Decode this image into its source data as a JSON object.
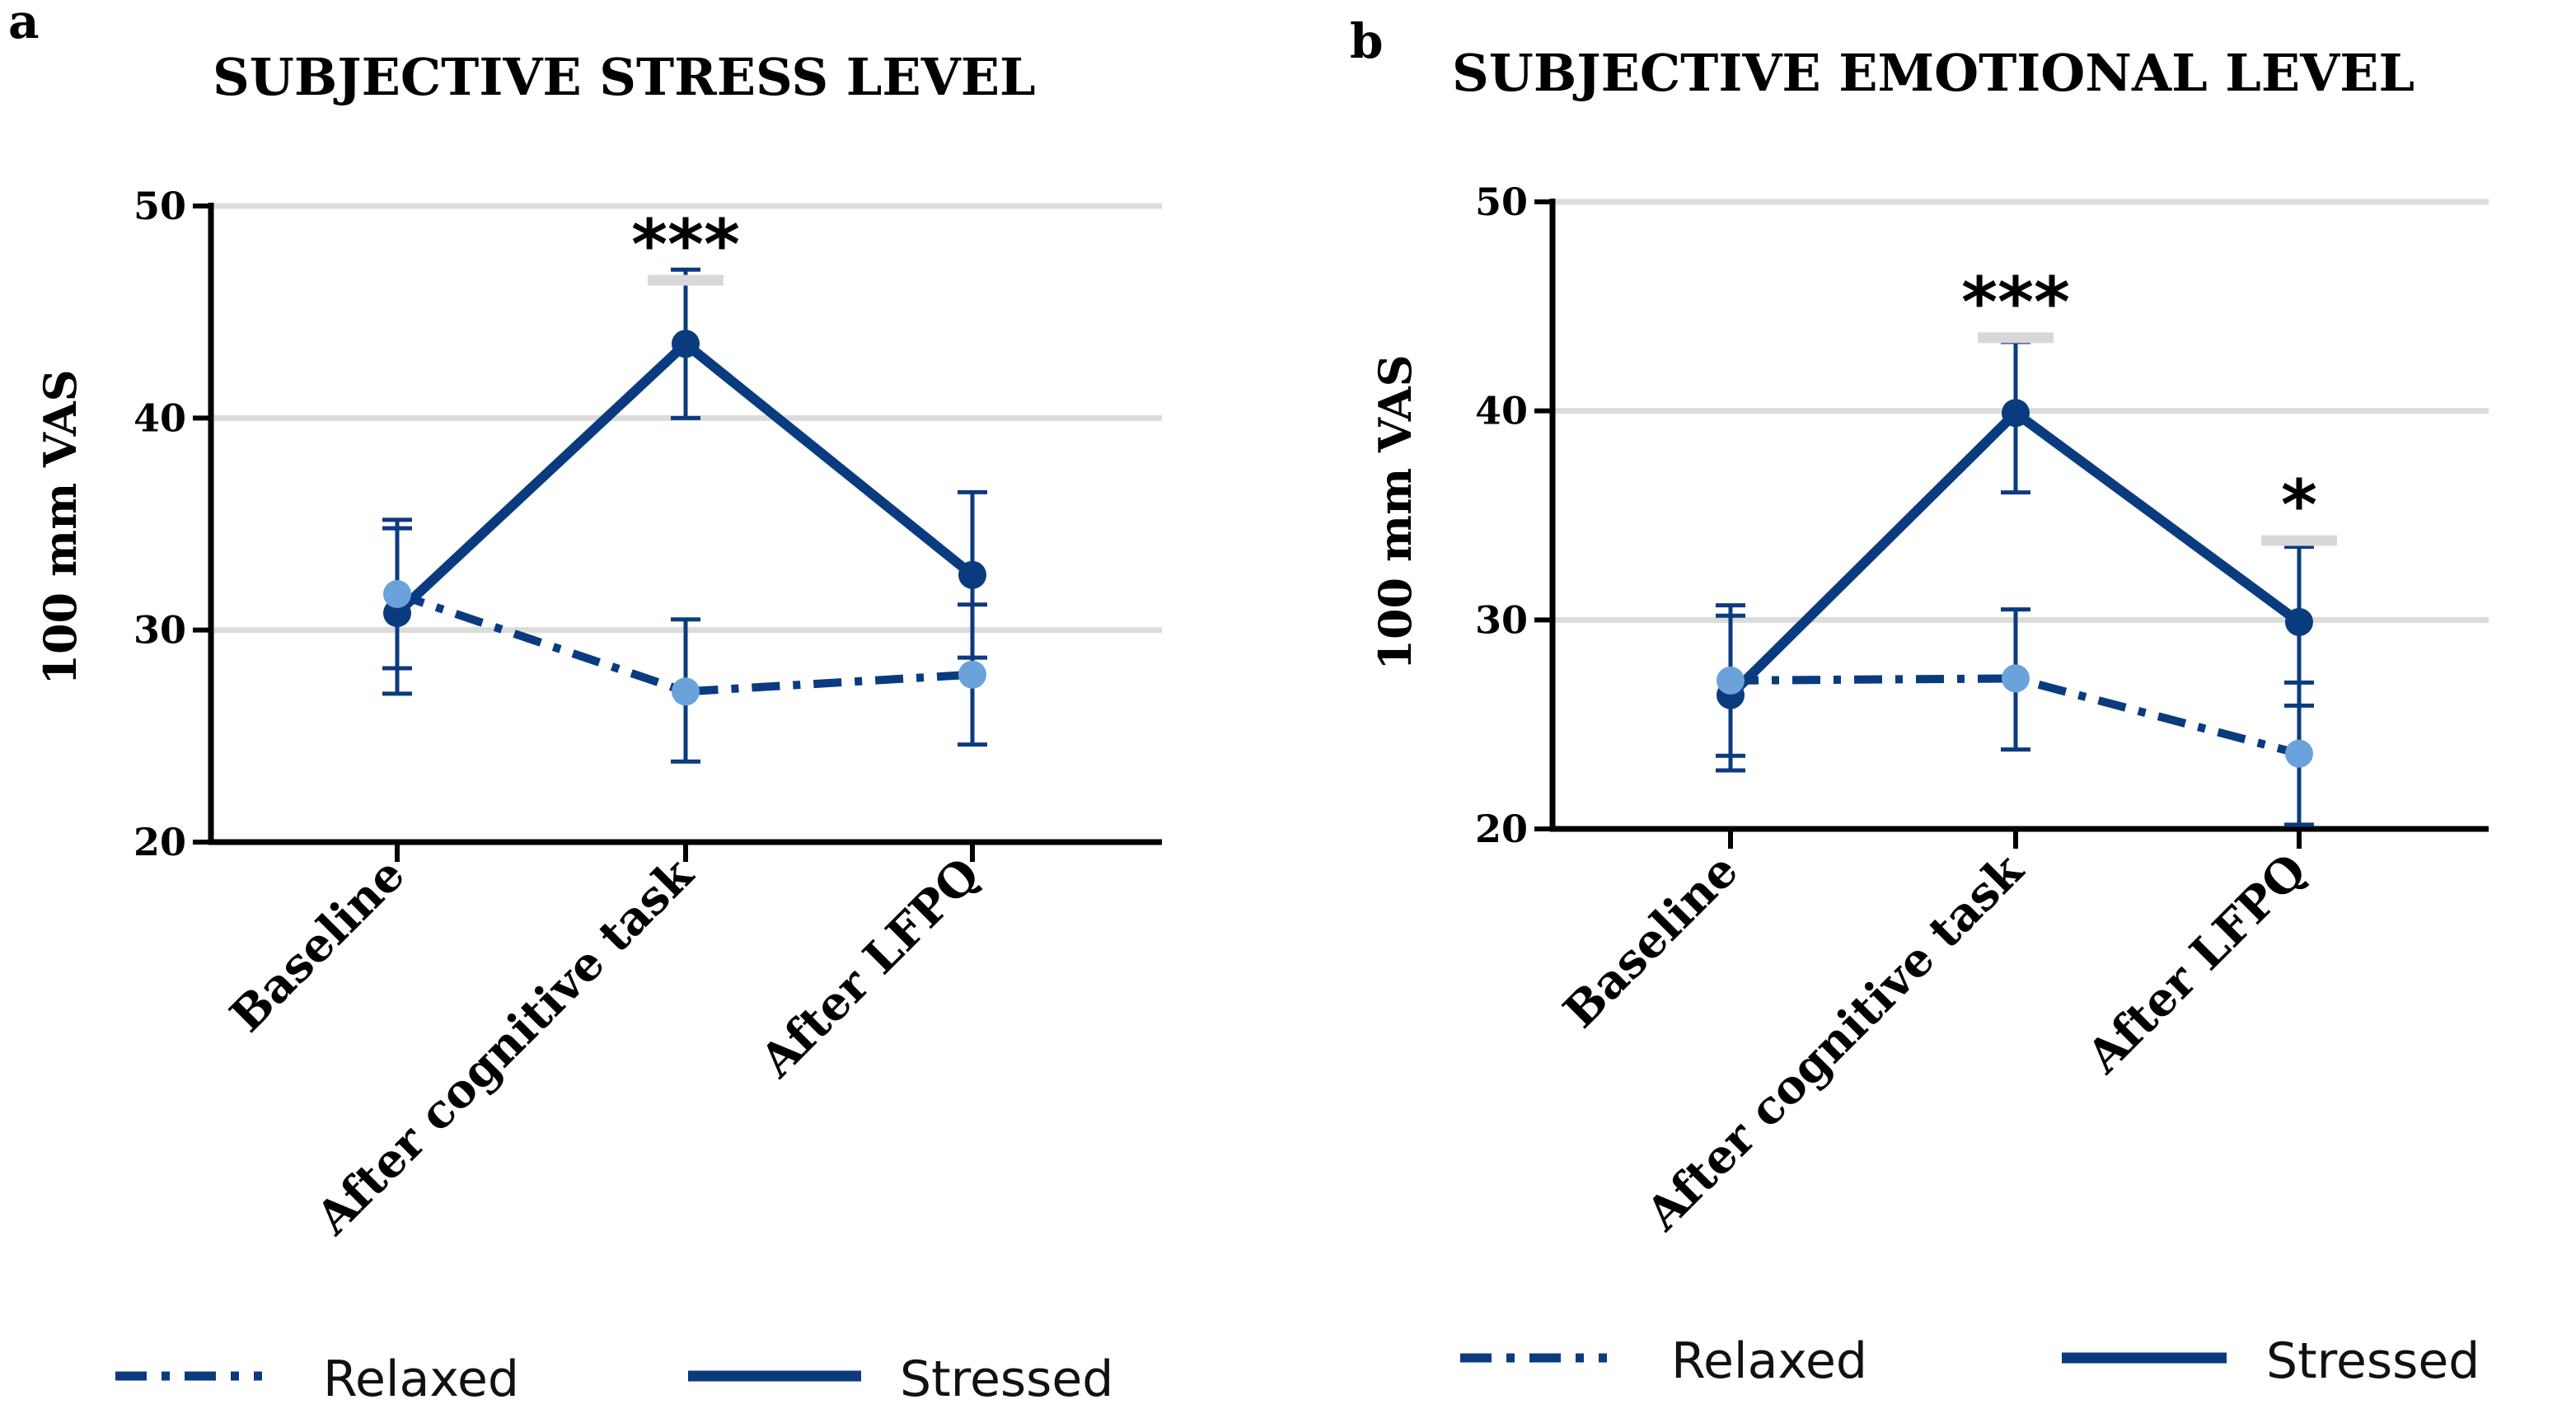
{
  "colors": {
    "stressed": "#0b3b7f",
    "relaxed_line": "#0b3b7f",
    "relaxed_marker": "#6aa3dc",
    "grid": "#dcdcdc",
    "sig_bar": "#d8d8d8",
    "axis": "#000000"
  },
  "legend": {
    "relaxed": "Relaxed",
    "stressed": "Stressed"
  },
  "chart_data": [
    {
      "panel": "a",
      "type": "line",
      "title": "SUBJECTIVE STRESS LEVEL",
      "ylabel": "100 mm VAS",
      "xlabel": "",
      "ylim": [
        20,
        50
      ],
      "yticks": [
        20,
        30,
        40,
        50
      ],
      "grid": true,
      "categories": [
        "Baseline",
        "After cognitive task",
        "After LFPQ"
      ],
      "series": [
        {
          "name": "Relaxed",
          "style": "dash-dot",
          "values": [
            31.7,
            27.1,
            27.9
          ],
          "err_low": [
            28.2,
            23.8,
            24.6
          ],
          "err_high": [
            35.2,
            30.5,
            31.2
          ]
        },
        {
          "name": "Stressed",
          "style": "solid",
          "values": [
            30.8,
            43.5,
            32.6
          ],
          "err_low": [
            27.0,
            40.0,
            28.7
          ],
          "err_high": [
            34.8,
            47.0,
            36.5
          ]
        }
      ],
      "significance": [
        {
          "category": "After cognitive task",
          "label": "***",
          "y": 46.5
        }
      ]
    },
    {
      "panel": "b",
      "type": "line",
      "title": "SUBJECTIVE EMOTIONAL LEVEL",
      "ylabel": "100 mm VAS",
      "xlabel": "",
      "ylim": [
        20,
        50
      ],
      "yticks": [
        20,
        30,
        40,
        50
      ],
      "grid": true,
      "categories": [
        "Baseline",
        "After cognitive task",
        "After LFPQ"
      ],
      "series": [
        {
          "name": "Relaxed",
          "style": "dash-dot",
          "values": [
            27.1,
            27.2,
            23.6
          ],
          "err_low": [
            23.5,
            23.8,
            20.2
          ],
          "err_high": [
            30.7,
            30.5,
            27.0
          ]
        },
        {
          "name": "Stressed",
          "style": "solid",
          "values": [
            26.4,
            39.9,
            29.9
          ],
          "err_low": [
            22.8,
            36.1,
            25.9
          ],
          "err_high": [
            30.2,
            43.3,
            33.5
          ]
        }
      ],
      "significance": [
        {
          "category": "After cognitive task",
          "label": "***",
          "y": 43.5
        },
        {
          "category": "After LFPQ",
          "label": "*",
          "y": 33.8
        }
      ]
    }
  ]
}
